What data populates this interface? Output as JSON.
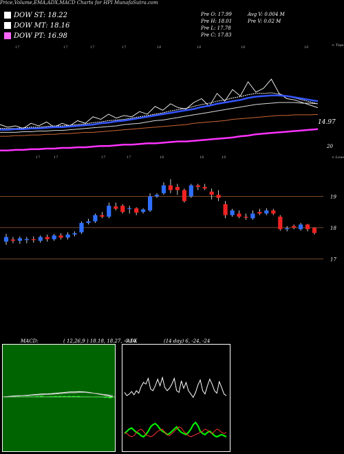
{
  "header": {
    "title": "Price,Volume,EMA,ADX,MACD Charts for HPI MunafaSutra.com"
  },
  "legend": [
    {
      "label": "DOW ST: 18.22",
      "color": "#ffffff"
    },
    {
      "label": "DOW MT: 18.16",
      "color": "#ffffff"
    },
    {
      "label": "DOW PT: 16.98",
      "color": "#ff66ff"
    }
  ],
  "stats": {
    "open": "Pre   O: 17.99",
    "high": "Pre   H: 18.01",
    "low": "Pre   L: 17.78",
    "close": "Pre   C: 17.83",
    "avg_volume": "Avg V: 0.004   M",
    "prev_volume": "Pre   V: 0.02   M"
  },
  "chart_data": [
    {
      "type": "line",
      "panel": "price-ema",
      "right_label_top": "< Tops",
      "price_label": "14.97",
      "level_label": "20",
      "top_month_labels": [
        "17",
        "17",
        "17",
        "17",
        "18",
        "18",
        "18",
        "18",
        "18"
      ],
      "bottom_month_labels": [
        "17",
        "17",
        "17",
        "17",
        "18",
        "18",
        "18"
      ],
      "series": [
        {
          "name": "",
          "values": [
            16.2,
            16.0,
            16.1,
            15.9,
            16.3,
            16.1,
            16.4,
            16.0,
            16.3,
            16.1,
            16.5,
            16.3,
            16.8,
            16.6,
            17.0,
            16.7,
            16.9,
            16.8,
            17.2,
            17.0,
            17.6,
            17.3,
            17.8,
            17.5,
            17.4,
            17.9,
            18.2,
            17.6,
            18.6,
            18.0,
            18.9,
            18.4,
            19.5,
            18.7,
            19.0,
            19.7,
            18.6,
            18.2,
            18.1,
            17.9,
            17.7,
            17.5
          ],
          "color": "#ffffff"
        },
        {
          "name": "",
          "values": [
            15.9,
            15.9,
            15.9,
            15.95,
            16.0,
            16.0,
            16.05,
            16.1,
            16.1,
            16.15,
            16.2,
            16.25,
            16.35,
            16.4,
            16.5,
            16.55,
            16.6,
            16.7,
            16.8,
            16.9,
            17.0,
            17.1,
            17.25,
            17.35,
            17.45,
            17.6,
            17.75,
            17.85,
            18.0,
            18.1,
            18.25,
            18.35,
            18.5,
            18.6,
            18.6,
            18.65,
            18.55,
            18.4,
            18.25,
            18.1,
            17.95,
            17.8
          ],
          "color": "#ffffff"
        },
        {
          "name": "",
          "values": [
            15.8,
            15.8,
            15.85,
            15.85,
            15.9,
            15.9,
            15.95,
            16.0,
            16.0,
            16.05,
            16.1,
            16.15,
            16.2,
            16.3,
            16.35,
            16.45,
            16.5,
            16.6,
            16.7,
            16.8,
            16.9,
            17.0,
            17.1,
            17.2,
            17.3,
            17.4,
            17.55,
            17.65,
            17.8,
            17.9,
            18.0,
            18.1,
            18.25,
            18.35,
            18.4,
            18.45,
            18.45,
            18.4,
            18.3,
            18.2,
            18.1,
            18.0
          ],
          "color": "#3355ff"
        },
        {
          "name": "",
          "values": [
            15.6,
            15.6,
            15.6,
            15.65,
            15.65,
            15.7,
            15.7,
            15.75,
            15.75,
            15.8,
            15.85,
            15.9,
            15.95,
            16.0,
            16.05,
            16.1,
            16.2,
            16.25,
            16.3,
            16.4,
            16.5,
            16.55,
            16.65,
            16.75,
            16.85,
            16.95,
            17.05,
            17.15,
            17.25,
            17.35,
            17.45,
            17.55,
            17.65,
            17.75,
            17.8,
            17.85,
            17.9,
            17.9,
            17.9,
            17.85,
            17.85,
            17.8
          ],
          "color": "#dddddd"
        },
        {
          "name": "",
          "values": [
            15.3,
            15.3,
            15.35,
            15.35,
            15.4,
            15.4,
            15.45,
            15.45,
            15.5,
            15.5,
            15.55,
            15.6,
            15.6,
            15.65,
            15.7,
            15.75,
            15.8,
            15.85,
            15.9,
            15.95,
            16.0,
            16.05,
            16.1,
            16.15,
            16.2,
            16.3,
            16.35,
            16.4,
            16.45,
            16.5,
            16.6,
            16.65,
            16.7,
            16.75,
            16.8,
            16.85,
            16.9,
            16.9,
            16.95,
            16.95,
            16.95,
            16.98
          ],
          "color": "#cc6633"
        },
        {
          "name": "",
          "values": [
            14.2,
            14.2,
            14.25,
            14.25,
            14.3,
            14.3,
            14.35,
            14.35,
            14.4,
            14.4,
            14.45,
            14.45,
            14.5,
            14.55,
            14.55,
            14.6,
            14.65,
            14.65,
            14.7,
            14.75,
            14.75,
            14.8,
            14.85,
            14.9,
            14.9,
            14.95,
            15.0,
            15.05,
            15.1,
            15.15,
            15.2,
            15.3,
            15.35,
            15.45,
            15.5,
            15.55,
            15.6,
            15.65,
            15.7,
            15.75,
            15.8,
            15.85
          ],
          "color": "#ff33ff"
        }
      ]
    },
    {
      "type": "candlestick",
      "panel": "price-candles",
      "right_label_top": "< Lows",
      "levels": [
        {
          "value": 19.0,
          "label": "19"
        },
        {
          "value": 18.0,
          "label": "18"
        },
        {
          "value": 17.0,
          "label": "17"
        }
      ],
      "ylim": [
        16.7,
        20.0
      ],
      "candles": [
        {
          "o": 17.55,
          "c": 17.7,
          "h": 17.8,
          "l": 17.45
        },
        {
          "o": 17.62,
          "c": 17.58,
          "h": 17.7,
          "l": 17.5
        },
        {
          "o": 17.58,
          "c": 17.66,
          "h": 17.72,
          "l": 17.48
        },
        {
          "o": 17.6,
          "c": 17.63,
          "h": 17.7,
          "l": 17.5
        },
        {
          "o": 17.63,
          "c": 17.6,
          "h": 17.72,
          "l": 17.52
        },
        {
          "o": 17.58,
          "c": 17.7,
          "h": 17.75,
          "l": 17.52
        },
        {
          "o": 17.7,
          "c": 17.63,
          "h": 17.78,
          "l": 17.55
        },
        {
          "o": 17.63,
          "c": 17.75,
          "h": 17.8,
          "l": 17.58
        },
        {
          "o": 17.75,
          "c": 17.68,
          "h": 17.82,
          "l": 17.62
        },
        {
          "o": 17.68,
          "c": 17.78,
          "h": 17.85,
          "l": 17.62
        },
        {
          "o": 17.78,
          "c": 17.82,
          "h": 17.88,
          "l": 17.72
        },
        {
          "o": 17.85,
          "c": 18.15,
          "h": 18.2,
          "l": 17.8
        },
        {
          "o": 18.15,
          "c": 18.2,
          "h": 18.28,
          "l": 18.1
        },
        {
          "o": 18.2,
          "c": 18.4,
          "h": 18.45,
          "l": 18.15
        },
        {
          "o": 18.4,
          "c": 18.35,
          "h": 18.5,
          "l": 18.3
        },
        {
          "o": 18.35,
          "c": 18.7,
          "h": 18.8,
          "l": 18.3
        },
        {
          "o": 18.68,
          "c": 18.6,
          "h": 18.8,
          "l": 18.55
        },
        {
          "o": 18.7,
          "c": 18.5,
          "h": 18.75,
          "l": 18.45
        },
        {
          "o": 18.6,
          "c": 18.62,
          "h": 18.7,
          "l": 18.45
        },
        {
          "o": 18.62,
          "c": 18.48,
          "h": 18.65,
          "l": 18.4
        },
        {
          "o": 18.5,
          "c": 18.58,
          "h": 18.62,
          "l": 18.45
        },
        {
          "o": 18.55,
          "c": 19.0,
          "h": 19.1,
          "l": 18.5
        },
        {
          "o": 19.0,
          "c": 19.05,
          "h": 19.1,
          "l": 18.95
        },
        {
          "o": 19.1,
          "c": 19.35,
          "h": 19.45,
          "l": 19.05
        },
        {
          "o": 19.35,
          "c": 19.2,
          "h": 19.55,
          "l": 19.1
        },
        {
          "o": 19.3,
          "c": 19.2,
          "h": 19.4,
          "l": 19.05
        },
        {
          "o": 19.2,
          "c": 18.85,
          "h": 19.25,
          "l": 18.8
        },
        {
          "o": 19.0,
          "c": 19.35,
          "h": 19.4,
          "l": 18.95
        },
        {
          "o": 19.35,
          "c": 19.3,
          "h": 19.4,
          "l": 19.2
        },
        {
          "o": 19.3,
          "c": 19.25,
          "h": 19.4,
          "l": 19.2
        },
        {
          "o": 19.15,
          "c": 19.05,
          "h": 19.25,
          "l": 18.9
        },
        {
          "o": 19.05,
          "c": 18.95,
          "h": 19.2,
          "l": 18.85
        },
        {
          "o": 18.75,
          "c": 18.4,
          "h": 18.85,
          "l": 18.3
        },
        {
          "o": 18.4,
          "c": 18.55,
          "h": 18.6,
          "l": 18.35
        },
        {
          "o": 18.45,
          "c": 18.35,
          "h": 18.55,
          "l": 18.3
        },
        {
          "o": 18.35,
          "c": 18.32,
          "h": 18.45,
          "l": 18.25
        },
        {
          "o": 18.3,
          "c": 18.45,
          "h": 18.55,
          "l": 18.25
        },
        {
          "o": 18.5,
          "c": 18.45,
          "h": 18.6,
          "l": 18.4
        },
        {
          "o": 18.45,
          "c": 18.55,
          "h": 18.62,
          "l": 18.4
        },
        {
          "o": 18.55,
          "c": 18.45,
          "h": 18.6,
          "l": 18.4
        },
        {
          "o": 18.35,
          "c": 17.95,
          "h": 18.4,
          "l": 17.9
        },
        {
          "o": 17.95,
          "c": 17.98,
          "h": 18.05,
          "l": 17.88
        },
        {
          "o": 18.05,
          "c": 18.0,
          "h": 18.1,
          "l": 17.95
        },
        {
          "o": 17.95,
          "c": 18.1,
          "h": 18.15,
          "l": 17.9
        },
        {
          "o": 18.1,
          "c": 17.95,
          "h": 18.12,
          "l": 17.88
        },
        {
          "o": 17.99,
          "c": 17.83,
          "h": 18.01,
          "l": 17.78
        }
      ]
    },
    {
      "type": "line",
      "panel": "macd",
      "label": "MACD:",
      "params": "( 12,26,9 ) 18.18,  18.27,  -0.14",
      "series": [
        {
          "name": "",
          "values": [
            0,
            0.01,
            0.02,
            0.03,
            0.03,
            0.04,
            0.05,
            0.06,
            0.07,
            0.07,
            0.08,
            0.09,
            0.1,
            0.11,
            0.12,
            0.12,
            0.13,
            0.12,
            0.11,
            0.09,
            0.07,
            0.05,
            0.03,
            0.0
          ],
          "color": "#ffffff"
        },
        {
          "name": "",
          "values": [
            0,
            0.005,
            0.01,
            0.02,
            0.025,
            0.03,
            0.04,
            0.045,
            0.05,
            0.06,
            0.065,
            0.07,
            0.08,
            0.09,
            0.1,
            0.1,
            0.11,
            0.11,
            0.1,
            0.09,
            0.08,
            0.06,
            0.05,
            0.03
          ],
          "color": "#bbbbbb"
        },
        {
          "name": "",
          "values": [
            0,
            0.005,
            0.01,
            0.01,
            0.005,
            0.01,
            0.01,
            0.015,
            0.02,
            0.01,
            0.015,
            0.02,
            0.02,
            0.02,
            0.02,
            0.02,
            0.02,
            0.01,
            0.01,
            0.0,
            -0.01,
            -0.01,
            -0.02,
            -0.03
          ],
          "color": "#22cc22"
        }
      ]
    },
    {
      "type": "line",
      "panel": "adx",
      "label": "ADX",
      "params": "(14 day) 6,  -24,  -24",
      "series": [
        {
          "name": "",
          "values": [
            28,
            24,
            26,
            29,
            25,
            30,
            27,
            35,
            40,
            38,
            45,
            32,
            30,
            36,
            44,
            36,
            46,
            34,
            30,
            33,
            38,
            45,
            30,
            28,
            42,
            33,
            40,
            30,
            26,
            22,
            28,
            37,
            43,
            30,
            26,
            36,
            44,
            38,
            30,
            27,
            41,
            34,
            26,
            24
          ],
          "color": "#ffffff"
        },
        {
          "name": "",
          "values": [
            8,
            10,
            12,
            13,
            11,
            9,
            8,
            6,
            5,
            7,
            10,
            14,
            16,
            17,
            15,
            12,
            10,
            9,
            7,
            8,
            10,
            12,
            14,
            11,
            9,
            8,
            7,
            9,
            12,
            16,
            18,
            15,
            10,
            8,
            7,
            9,
            10,
            8,
            6,
            5,
            6,
            7,
            6,
            5
          ],
          "color": "#00ee00"
        },
        {
          "name": "",
          "values": [
            9,
            8,
            6,
            5,
            6,
            9,
            11,
            12,
            10,
            7,
            6,
            5,
            6,
            8,
            10,
            11,
            12,
            9,
            7,
            6,
            8,
            10,
            12,
            14,
            13,
            10,
            8,
            6,
            5,
            6,
            7,
            8,
            9,
            10,
            12,
            11,
            9,
            8,
            10,
            12,
            11,
            9,
            8,
            9
          ],
          "color": "#ff3333"
        }
      ]
    }
  ]
}
